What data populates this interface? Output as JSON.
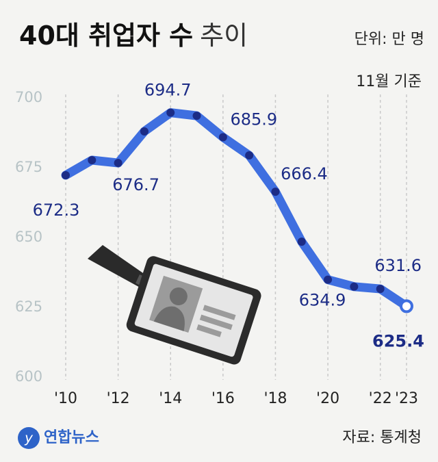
{
  "chart_data": {
    "type": "line",
    "title": [
      "40대 취업자 수",
      "추이"
    ],
    "unit": "단위: 만 명",
    "note": "11월 기준",
    "x": [
      2010,
      2011,
      2012,
      2013,
      2014,
      2015,
      2016,
      2017,
      2018,
      2019,
      2020,
      2021,
      2022,
      2023
    ],
    "values": [
      672.3,
      677.7,
      676.7,
      688.0,
      694.7,
      693.6,
      685.9,
      679.4,
      666.4,
      648.5,
      634.9,
      632.4,
      631.6,
      625.4
    ],
    "value_labels": [
      "672.3",
      null,
      "676.7",
      null,
      "694.7",
      null,
      "685.9",
      null,
      "666.4",
      null,
      "634.9",
      null,
      "631.6",
      "625.4"
    ],
    "color": "#3f6fe0",
    "marker_color": "#1c2c86",
    "xlim": [
      2010,
      2023
    ],
    "xticks": [
      {
        "value": 2010,
        "label": "'10"
      },
      {
        "value": 2012,
        "label": "'12"
      },
      {
        "value": 2014,
        "label": "'14"
      },
      {
        "value": 2016,
        "label": "'16"
      },
      {
        "value": 2018,
        "label": "'18"
      },
      {
        "value": 2020,
        "label": "'20"
      },
      {
        "value": 2022,
        "label": "'22"
      },
      {
        "value": 2023,
        "label": "'23"
      }
    ],
    "ylim": [
      600,
      700
    ],
    "yticks": [
      600,
      625,
      650,
      675,
      700
    ],
    "grid": true
  },
  "source": "자료: 통계청",
  "logo": "연합뉴스"
}
